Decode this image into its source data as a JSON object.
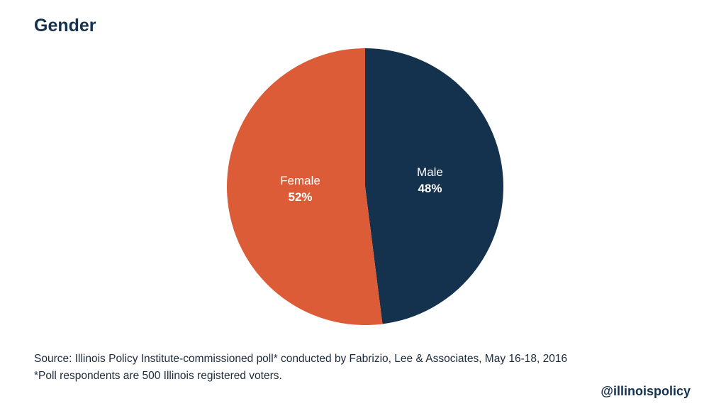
{
  "chart_data": {
    "type": "pie",
    "title": "Gender",
    "slices": [
      {
        "label": "Male",
        "value": 48,
        "value_label": "48%",
        "color": "#14314e"
      },
      {
        "label": "Female",
        "value": 52,
        "value_label": "52%",
        "color": "#dd5c38"
      }
    ],
    "start": "12 o'clock",
    "direction": "clockwise"
  },
  "footer": {
    "source": "Source: Illinois Policy Institute-commissioned poll* conducted by Fabrizio, Lee & Associates, May 16-18, 2016",
    "note": "*Poll respondents are 500 Illinois registered voters.",
    "handle": "@illinoispolicy"
  }
}
